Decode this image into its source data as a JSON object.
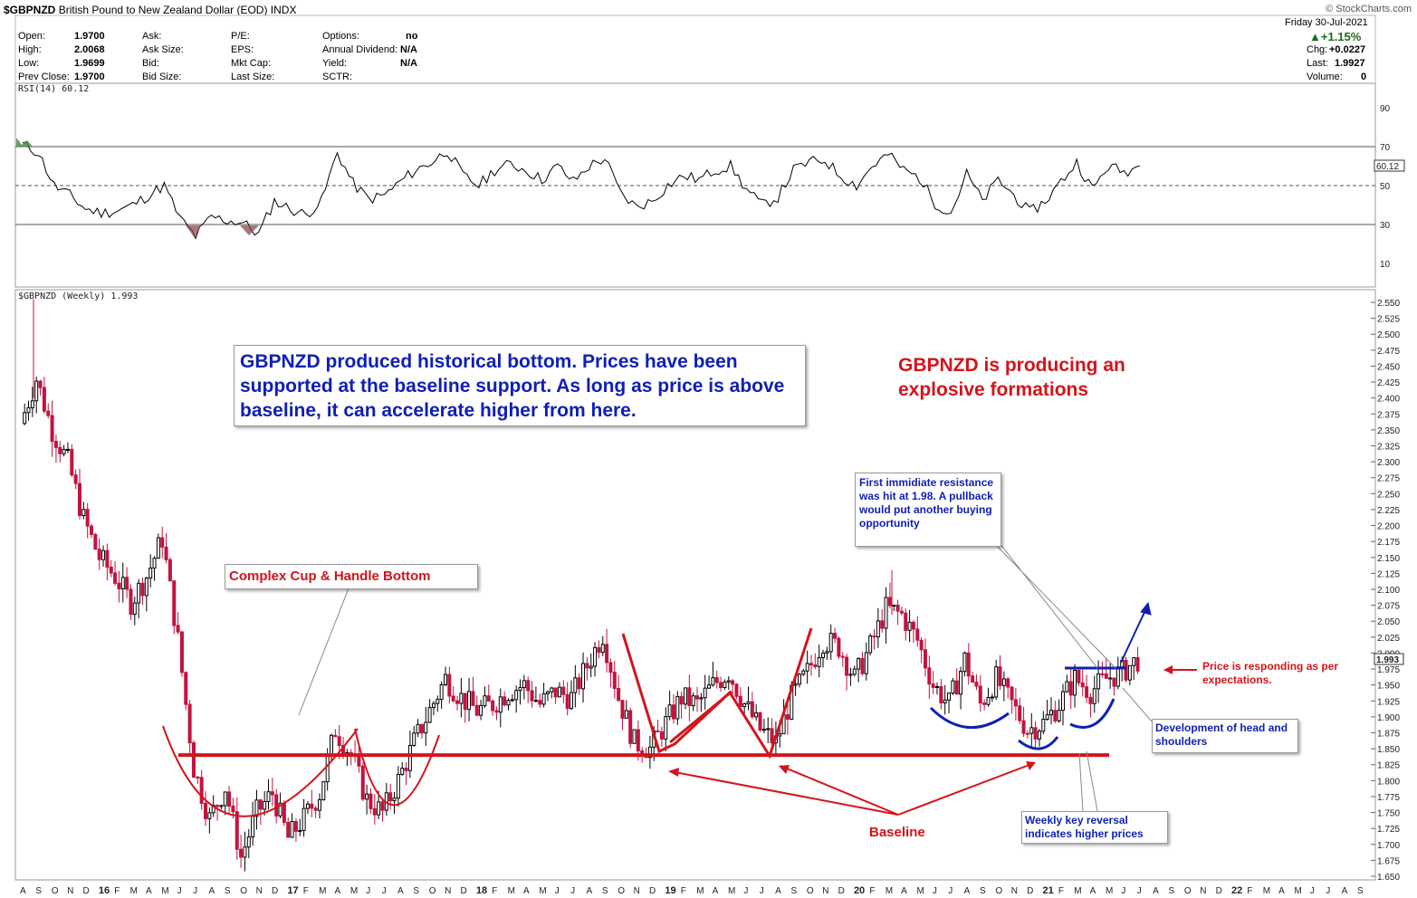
{
  "header": {
    "symbol": "$GBPNZD",
    "name": "British Pound to New Zealand Dollar (EOD)",
    "exchange": "INDX",
    "brand": "© StockCharts.com",
    "date": "Friday  30-Jul-2021",
    "pct_change": "▲+1.15%",
    "chg_label": "Chg:",
    "chg": "+0.0227",
    "last_label": "Last:",
    "last": "1.9927",
    "volume_label": "Volume:",
    "volume": "0",
    "stats": [
      {
        "label": "Open:",
        "value": "1.9700"
      },
      {
        "label": "High:",
        "value": "2.0068"
      },
      {
        "label": "Low:",
        "value": "1.9699"
      },
      {
        "label": "Prev Close:",
        "value": "1.9700"
      }
    ],
    "col2": [
      "Ask:",
      "Ask Size:",
      "Bid:",
      "Bid Size:"
    ],
    "col3": [
      "P/E:",
      "EPS:",
      "Mkt Cap:",
      "Last Size:"
    ],
    "col4": [
      {
        "label": "Options:",
        "value": "no"
      },
      {
        "label": "Annual Dividend:",
        "value": "N/A"
      },
      {
        "label": "Yield:",
        "value": "N/A"
      },
      {
        "label": "SCTR:",
        "value": ""
      }
    ]
  },
  "rsi_panel": {
    "label": "RSI(14) 60.12",
    "value_tag": "60.12",
    "ticks": [
      "90",
      "70",
      "50",
      "30",
      "10"
    ]
  },
  "price_panel": {
    "label": "$GBPNZD (Weekly) 1.993",
    "value_tag": "1.993"
  },
  "annotations": {
    "blue_box": "GBPNZD produced historical bottom. Prices have been supported at the baseline support. As long as price is above baseline, it can accelerate higher from here.",
    "red_title_1": "GBPNZD is producing an",
    "red_title_2": "explosive formations",
    "cup_handle": "Complex Cup & Handle Bottom",
    "resistance_note": "First immidiate resistance was hit at 1.98. A pullback would put another buying opportunity",
    "price_responding_1": "Price is responding as per",
    "price_responding_2": "expectations.",
    "head_shoulders": "Development of head and shoulders",
    "baseline": "Baseline",
    "key_reversal": "Weekly key reversal indicates higher prices"
  },
  "colors": {
    "candle_up": "#000000",
    "candle_down": "#c4123e",
    "annotation_red": "#d4141b",
    "annotation_blue": "#0f1fb5",
    "rsi_line": "#000000"
  },
  "chart_data": {
    "type": "candlestick",
    "title": "$GBPNZD (Weekly) 1.993",
    "y_ticks": [
      "2.550",
      "2.525",
      "2.500",
      "2.475",
      "2.450",
      "2.425",
      "2.400",
      "2.375",
      "2.350",
      "2.325",
      "2.300",
      "2.275",
      "2.250",
      "2.225",
      "2.200",
      "2.175",
      "2.150",
      "2.125",
      "2.100",
      "2.075",
      "2.050",
      "2.025",
      "2.000",
      "1.975",
      "1.950",
      "1.925",
      "1.900",
      "1.875",
      "1.850",
      "1.825",
      "1.800",
      "1.775",
      "1.750",
      "1.725",
      "1.700",
      "1.675",
      "1.650"
    ],
    "ylim": [
      1.645,
      2.555
    ],
    "x_ticks": [
      "A",
      "S",
      "O",
      "N",
      "D",
      "16",
      "F",
      "M",
      "A",
      "M",
      "J",
      "J",
      "A",
      "S",
      "O",
      "N",
      "D",
      "17",
      "F",
      "M",
      "A",
      "M",
      "J",
      "J",
      "A",
      "S",
      "O",
      "N",
      "D",
      "18",
      "F",
      "M",
      "A",
      "M",
      "J",
      "J",
      "A",
      "S",
      "O",
      "N",
      "D",
      "19",
      "F",
      "M",
      "A",
      "M",
      "J",
      "J",
      "A",
      "S",
      "O",
      "N",
      "D",
      "20",
      "F",
      "M",
      "A",
      "M",
      "J",
      "J",
      "A",
      "S",
      "O",
      "N",
      "D",
      "21",
      "F",
      "M",
      "A",
      "M",
      "J",
      "J",
      "A",
      "S",
      "O",
      "N",
      "D",
      "22",
      "F",
      "M",
      "A",
      "M",
      "J",
      "J",
      "A",
      "S"
    ],
    "baseline_level": 1.84,
    "price_path": [
      [
        "2015-08",
        2.36
      ],
      [
        "2015-09",
        2.43
      ],
      [
        "2015-10",
        2.35
      ],
      [
        "2015-11",
        2.3
      ],
      [
        "2015-12",
        2.21
      ],
      [
        "2016-01",
        2.15
      ],
      [
        "2016-02",
        2.12
      ],
      [
        "2016-03",
        2.08
      ],
      [
        "2016-04",
        2.12
      ],
      [
        "2016-05",
        2.18
      ],
      [
        "2016-06",
        2.02
      ],
      [
        "2016-07",
        1.82
      ],
      [
        "2016-08",
        1.74
      ],
      [
        "2016-09",
        1.79
      ],
      [
        "2016-10",
        1.68
      ],
      [
        "2016-11",
        1.75
      ],
      [
        "2016-12",
        1.78
      ],
      [
        "2017-01",
        1.71
      ],
      [
        "2017-02",
        1.74
      ],
      [
        "2017-03",
        1.78
      ],
      [
        "2017-04",
        1.88
      ],
      [
        "2017-05",
        1.84
      ],
      [
        "2017-06",
        1.77
      ],
      [
        "2017-07",
        1.75
      ],
      [
        "2017-08",
        1.8
      ],
      [
        "2017-09",
        1.86
      ],
      [
        "2017-10",
        1.91
      ],
      [
        "2017-11",
        1.96
      ],
      [
        "2017-12",
        1.93
      ],
      [
        "2018-01",
        1.91
      ],
      [
        "2018-02",
        1.92
      ],
      [
        "2018-03",
        1.94
      ],
      [
        "2018-04",
        1.95
      ],
      [
        "2018-05",
        1.92
      ],
      [
        "2018-06",
        1.94
      ],
      [
        "2018-07",
        1.93
      ],
      [
        "2018-08",
        1.98
      ],
      [
        "2018-09",
        2.03
      ],
      [
        "2018-10",
        1.93
      ],
      [
        "2018-11",
        1.86
      ],
      [
        "2018-12",
        1.85
      ],
      [
        "2019-01",
        1.89
      ],
      [
        "2019-02",
        1.93
      ],
      [
        "2019-03",
        1.92
      ],
      [
        "2019-04",
        1.95
      ],
      [
        "2019-05",
        1.97
      ],
      [
        "2019-06",
        1.92
      ],
      [
        "2019-07",
        1.88
      ],
      [
        "2019-08",
        1.86
      ],
      [
        "2019-09",
        1.93
      ],
      [
        "2019-10",
        1.97
      ],
      [
        "2019-11",
        2.02
      ],
      [
        "2019-12",
        2.01
      ],
      [
        "2020-01",
        1.96
      ],
      [
        "2020-02",
        2.01
      ],
      [
        "2020-03",
        2.07
      ],
      [
        "2020-04",
        2.06
      ],
      [
        "2020-05",
        2.02
      ],
      [
        "2020-06",
        1.95
      ],
      [
        "2020-07",
        1.92
      ],
      [
        "2020-08",
        1.99
      ],
      [
        "2020-09",
        1.92
      ],
      [
        "2020-10",
        1.96
      ],
      [
        "2020-11",
        1.92
      ],
      [
        "2020-12",
        1.88
      ],
      [
        "2021-01",
        1.89
      ],
      [
        "2021-02",
        1.92
      ],
      [
        "2021-03",
        1.96
      ],
      [
        "2021-04",
        1.94
      ],
      [
        "2021-05",
        1.96
      ],
      [
        "2021-06",
        1.97
      ],
      [
        "2021-07",
        1.99
      ]
    ],
    "rsi_levels": [
      30,
      50,
      70
    ],
    "rsi_last": 60.12,
    "rsi_path": [
      [
        "2015-08",
        71
      ],
      [
        "2015-09",
        67
      ],
      [
        "2015-10",
        50
      ],
      [
        "2015-11",
        45
      ],
      [
        "2015-12",
        38
      ],
      [
        "2016-01",
        36
      ],
      [
        "2016-02",
        37
      ],
      [
        "2016-03",
        40
      ],
      [
        "2016-04",
        45
      ],
      [
        "2016-05",
        50
      ],
      [
        "2016-06",
        33
      ],
      [
        "2016-07",
        24
      ],
      [
        "2016-08",
        34
      ],
      [
        "2016-09",
        32
      ],
      [
        "2016-10",
        31
      ],
      [
        "2016-11",
        25
      ],
      [
        "2016-12",
        42
      ],
      [
        "2017-01",
        38
      ],
      [
        "2017-02",
        35
      ],
      [
        "2017-03",
        42
      ],
      [
        "2017-04",
        67
      ],
      [
        "2017-05",
        51
      ],
      [
        "2017-06",
        43
      ],
      [
        "2017-07",
        45
      ],
      [
        "2017-08",
        52
      ],
      [
        "2017-09",
        58
      ],
      [
        "2017-10",
        62
      ],
      [
        "2017-11",
        68
      ],
      [
        "2017-12",
        55
      ],
      [
        "2018-01",
        50
      ],
      [
        "2018-02",
        58
      ],
      [
        "2018-03",
        61
      ],
      [
        "2018-04",
        58
      ],
      [
        "2018-05",
        53
      ],
      [
        "2018-06",
        60
      ],
      [
        "2018-07",
        52
      ],
      [
        "2018-08",
        60
      ],
      [
        "2018-09",
        64
      ],
      [
        "2018-10",
        46
      ],
      [
        "2018-11",
        39
      ],
      [
        "2018-12",
        42
      ],
      [
        "2019-01",
        50
      ],
      [
        "2019-02",
        55
      ],
      [
        "2019-03",
        53
      ],
      [
        "2019-04",
        58
      ],
      [
        "2019-05",
        60
      ],
      [
        "2019-06",
        48
      ],
      [
        "2019-07",
        40
      ],
      [
        "2019-08",
        44
      ],
      [
        "2019-09",
        58
      ],
      [
        "2019-10",
        62
      ],
      [
        "2019-11",
        63
      ],
      [
        "2019-12",
        55
      ],
      [
        "2020-01",
        50
      ],
      [
        "2020-02",
        60
      ],
      [
        "2020-03",
        66
      ],
      [
        "2020-04",
        58
      ],
      [
        "2020-05",
        54
      ],
      [
        "2020-06",
        41
      ],
      [
        "2020-07",
        36
      ],
      [
        "2020-08",
        56
      ],
      [
        "2020-09",
        42
      ],
      [
        "2020-10",
        53
      ],
      [
        "2020-11",
        45
      ],
      [
        "2020-12",
        36
      ],
      [
        "2021-01",
        42
      ],
      [
        "2021-02",
        52
      ],
      [
        "2021-03",
        62
      ],
      [
        "2021-04",
        48
      ],
      [
        "2021-05",
        60
      ],
      [
        "2021-06",
        57
      ],
      [
        "2021-07",
        60
      ]
    ]
  }
}
